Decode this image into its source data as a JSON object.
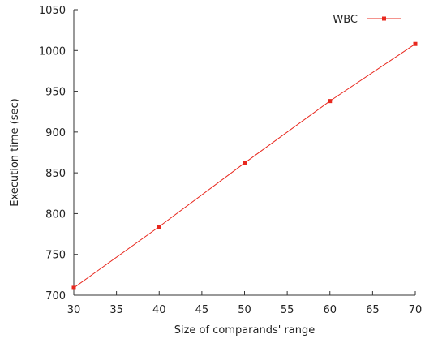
{
  "chart_data": {
    "type": "line",
    "title": "",
    "xlabel": "Size of comparands' range",
    "ylabel": "Execution time (sec)",
    "xlim": [
      30,
      70
    ],
    "ylim": [
      700,
      1050
    ],
    "xticks": [
      30,
      35,
      40,
      45,
      50,
      55,
      60,
      65,
      70
    ],
    "yticks": [
      700,
      750,
      800,
      850,
      900,
      950,
      1000,
      1050
    ],
    "grid": false,
    "legend_position": "top-right",
    "series": [
      {
        "name": "WBC",
        "color": "#e8281e",
        "x": [
          30,
          40,
          50,
          60,
          70
        ],
        "y": [
          709,
          784,
          862,
          938,
          1008
        ]
      }
    ]
  }
}
